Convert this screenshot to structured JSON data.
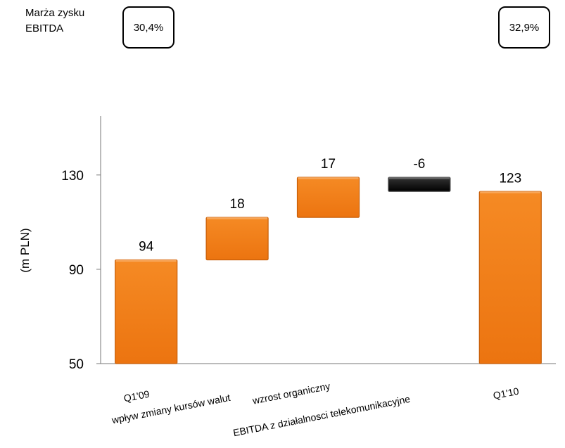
{
  "margin": {
    "label_line1": "Marża zysku",
    "label_line2": "EBITDA",
    "start_value": "30,4%",
    "end_value": "32,9%"
  },
  "colors": {
    "orange": "#f07c14",
    "orange_dark": "#c75e08",
    "black": "#0a0a0a"
  },
  "chart_data": {
    "type": "bar",
    "subtype": "waterfall",
    "ylabel": "(m PLN)",
    "ylim": [
      50,
      155
    ],
    "yticks": [
      50,
      90,
      130
    ],
    "grid": false,
    "categories": [
      "Q1'09",
      "wpływ zmiany kursów walut",
      "wzrost organiczny",
      "EBITDA z działalnosci telekomunikacyjne",
      "Q1'10"
    ],
    "bars": [
      {
        "label": "94",
        "start": 50,
        "end": 94,
        "kind": "total"
      },
      {
        "label": "18",
        "start": 94,
        "end": 112,
        "kind": "increase"
      },
      {
        "label": "17",
        "start": 112,
        "end": 129,
        "kind": "increase"
      },
      {
        "label": "-6",
        "start": 129,
        "end": 123,
        "kind": "decrease"
      },
      {
        "label": "123",
        "start": 50,
        "end": 123,
        "kind": "total"
      }
    ]
  }
}
